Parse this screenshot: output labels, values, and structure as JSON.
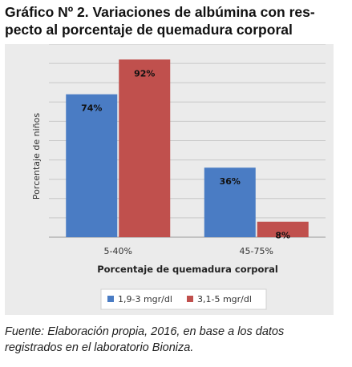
{
  "figure": {
    "title_line1": "Gráfico Nº 2. Variaciones de albúmina con res-",
    "title_line2": "pecto al porcentaje de quemadura corporal",
    "caption_line1": "Fuente: Elaboración propia, 2016, en base a los datos",
    "caption_line2": "registrados en el laboratorio Bioniza."
  },
  "chart_data": {
    "type": "bar",
    "categories": [
      "5-40%",
      "45-75%"
    ],
    "series": [
      {
        "name": "1,9-3 mgr/dl",
        "values": [
          74,
          36
        ],
        "labels": [
          "74%",
          "36%"
        ],
        "color": "#4a7cc4"
      },
      {
        "name": "3,1-5 mgr/dl",
        "values": [
          92,
          8
        ],
        "labels": [
          "92%",
          "8%"
        ],
        "color": "#c0504d"
      }
    ],
    "xlabel": "Porcentaje de quemadura corporal",
    "ylabel": "Porcentaje de niños",
    "ylim": [
      0,
      100
    ],
    "grid": true,
    "legend": "bottom"
  }
}
